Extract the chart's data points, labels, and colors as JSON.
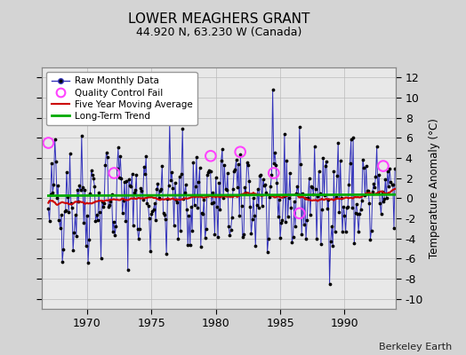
{
  "title": "LOWER MEAGHERS GRANT",
  "subtitle": "44.920 N, 63.230 W (Canada)",
  "ylabel": "Temperature Anomaly (°C)",
  "credit": "Berkeley Earth",
  "ylim": [
    -11,
    13
  ],
  "yticks": [
    -10,
    -8,
    -6,
    -4,
    -2,
    0,
    2,
    4,
    6,
    8,
    10,
    12
  ],
  "xlim": [
    1966.5,
    1994.0
  ],
  "xticks": [
    1970,
    1975,
    1980,
    1985,
    1990
  ],
  "fig_bg": "#d4d4d4",
  "plot_bg": "#e8e8e8",
  "raw_color": "#3333bb",
  "dot_color": "#000000",
  "ma_color": "#cc0000",
  "trend_color": "#00aa00",
  "qc_color": "#ff44ff",
  "grid_color": "#bbbbbb",
  "start_year": 1967.0,
  "n_years": 27,
  "seed": 42,
  "qc_times": [
    1967.0,
    1972.1,
    1979.6,
    1981.9,
    1984.5,
    1986.5,
    1993.0
  ],
  "qc_values": [
    5.5,
    2.5,
    4.2,
    4.6,
    2.5,
    -1.5,
    3.2
  ]
}
